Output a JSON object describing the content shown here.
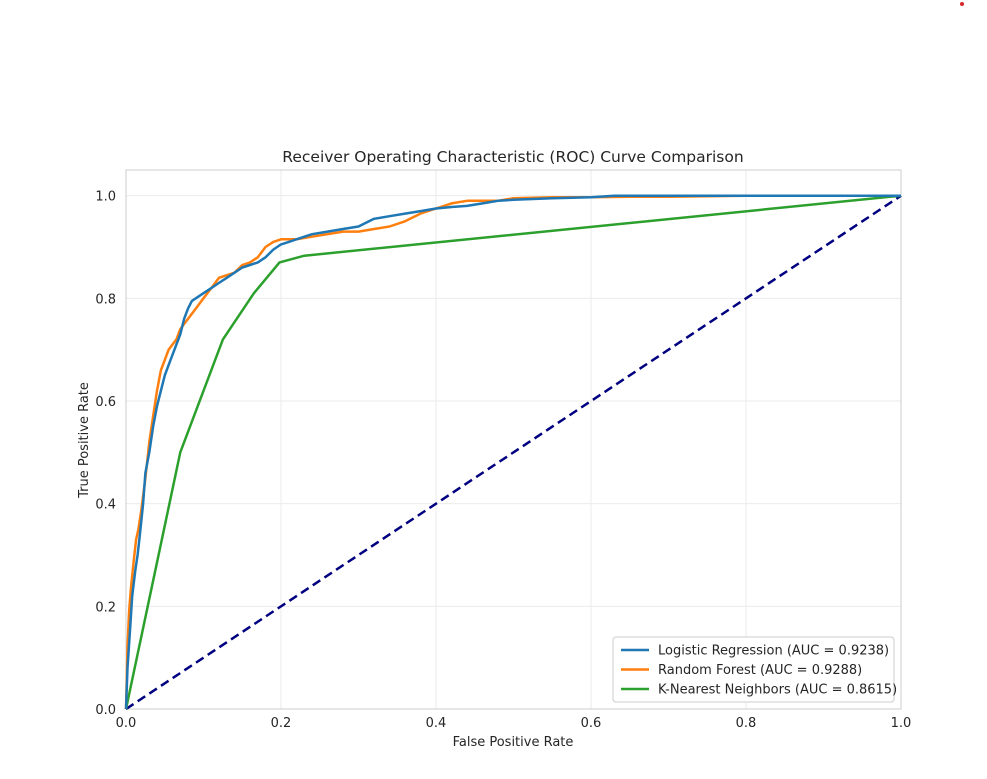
{
  "chart_data": {
    "type": "line",
    "title": "Receiver Operating Characteristic (ROC) Curve Comparison",
    "xlabel": "False Positive Rate",
    "ylabel": "True Positive Rate",
    "xlim": [
      0.0,
      1.0
    ],
    "ylim": [
      0.0,
      1.05
    ],
    "x_ticks": [
      "0.0",
      "0.2",
      "0.4",
      "0.6",
      "0.8",
      "1.0"
    ],
    "y_ticks": [
      "0.0",
      "0.2",
      "0.4",
      "0.6",
      "0.8",
      "1.0"
    ],
    "grid": true,
    "legend_position": "lower right",
    "series": [
      {
        "name": "Logistic Regression (AUC = 0.9238)",
        "color": "#1f77b4",
        "x": [
          0.0,
          0.002,
          0.005,
          0.008,
          0.012,
          0.015,
          0.018,
          0.022,
          0.025,
          0.03,
          0.035,
          0.04,
          0.045,
          0.05,
          0.055,
          0.06,
          0.065,
          0.07,
          0.075,
          0.08,
          0.085,
          0.09,
          0.1,
          0.11,
          0.12,
          0.13,
          0.14,
          0.15,
          0.16,
          0.17,
          0.18,
          0.19,
          0.2,
          0.21,
          0.22,
          0.24,
          0.26,
          0.28,
          0.3,
          0.32,
          0.34,
          0.36,
          0.38,
          0.4,
          0.42,
          0.44,
          0.46,
          0.48,
          0.5,
          0.55,
          0.6,
          0.63,
          0.7,
          0.8,
          0.9,
          1.0
        ],
        "y": [
          0.0,
          0.08,
          0.15,
          0.22,
          0.27,
          0.3,
          0.34,
          0.4,
          0.46,
          0.5,
          0.55,
          0.59,
          0.62,
          0.65,
          0.67,
          0.69,
          0.71,
          0.73,
          0.76,
          0.78,
          0.795,
          0.8,
          0.81,
          0.82,
          0.83,
          0.84,
          0.85,
          0.86,
          0.865,
          0.87,
          0.88,
          0.895,
          0.905,
          0.91,
          0.915,
          0.925,
          0.93,
          0.935,
          0.94,
          0.955,
          0.96,
          0.965,
          0.97,
          0.975,
          0.978,
          0.98,
          0.985,
          0.99,
          0.992,
          0.995,
          0.997,
          1.0,
          1.0,
          1.0,
          1.0,
          1.0
        ]
      },
      {
        "name": "Random Forest (AUC = 0.9288)",
        "color": "#ff7f0e",
        "x": [
          0.0,
          0.002,
          0.004,
          0.006,
          0.008,
          0.01,
          0.013,
          0.016,
          0.02,
          0.025,
          0.03,
          0.035,
          0.04,
          0.045,
          0.05,
          0.055,
          0.06,
          0.065,
          0.07,
          0.075,
          0.08,
          0.085,
          0.09,
          0.1,
          0.11,
          0.12,
          0.13,
          0.14,
          0.15,
          0.16,
          0.17,
          0.18,
          0.19,
          0.2,
          0.22,
          0.24,
          0.26,
          0.28,
          0.3,
          0.32,
          0.34,
          0.36,
          0.38,
          0.4,
          0.42,
          0.44,
          0.46,
          0.48,
          0.5,
          0.55,
          0.6,
          0.65,
          0.7,
          0.8,
          0.9,
          1.0
        ],
        "y": [
          0.0,
          0.12,
          0.19,
          0.23,
          0.26,
          0.29,
          0.33,
          0.35,
          0.39,
          0.45,
          0.52,
          0.57,
          0.62,
          0.66,
          0.68,
          0.7,
          0.71,
          0.72,
          0.74,
          0.75,
          0.76,
          0.77,
          0.78,
          0.8,
          0.82,
          0.84,
          0.845,
          0.85,
          0.865,
          0.87,
          0.88,
          0.9,
          0.91,
          0.915,
          0.915,
          0.92,
          0.925,
          0.93,
          0.93,
          0.935,
          0.94,
          0.95,
          0.965,
          0.975,
          0.985,
          0.99,
          0.99,
          0.99,
          0.995,
          0.997,
          0.997,
          0.998,
          0.998,
          1.0,
          1.0,
          1.0
        ]
      },
      {
        "name": "K-Nearest Neighbors (AUC = 0.8615)",
        "color": "#2ca02c",
        "x": [
          0.0,
          0.07,
          0.125,
          0.165,
          0.198,
          0.23,
          1.0
        ],
        "y": [
          0.0,
          0.5,
          0.72,
          0.81,
          0.87,
          0.883,
          1.0
        ]
      },
      {
        "name": "",
        "color": "#000080",
        "dashed": true,
        "x": [
          0.0,
          1.0
        ],
        "y": [
          0.0,
          1.0
        ]
      }
    ]
  }
}
